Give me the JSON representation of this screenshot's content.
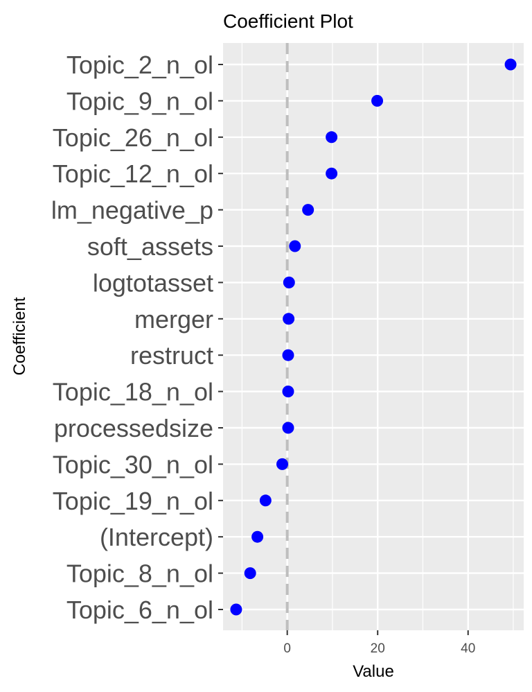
{
  "chart_data": {
    "type": "scatter",
    "title": "Coefficient Plot",
    "xlabel": "Value",
    "ylabel": "Coefficient",
    "categories": [
      "Topic_2_n_ol",
      "Topic_9_n_ol",
      "Topic_26_n_ol",
      "Topic_12_n_ol",
      "lm_negative_p",
      "soft_assets",
      "logtotasset",
      "merger",
      "restruct",
      "Topic_18_n_ol",
      "processedsize",
      "Topic_30_n_ol",
      "Topic_19_n_ol",
      "(Intercept)",
      "Topic_8_n_ol",
      "Topic_6_n_ol"
    ],
    "values": [
      49.4,
      19.9,
      9.8,
      9.8,
      4.6,
      1.7,
      0.4,
      0.3,
      0.2,
      0.2,
      0.2,
      -1.1,
      -4.8,
      -6.6,
      -8.2,
      -11.3
    ],
    "xlim": [
      -14.2,
      52.3
    ],
    "xticks": [
      0,
      20,
      40
    ],
    "xtick_labels": [
      "0",
      "20",
      "40"
    ],
    "reference_line": 0,
    "grid": true,
    "point_color": "#0000ff",
    "panel_color": "#ebebeb",
    "grid_color": "#ffffff",
    "reference_line_color": "#bebebe"
  }
}
